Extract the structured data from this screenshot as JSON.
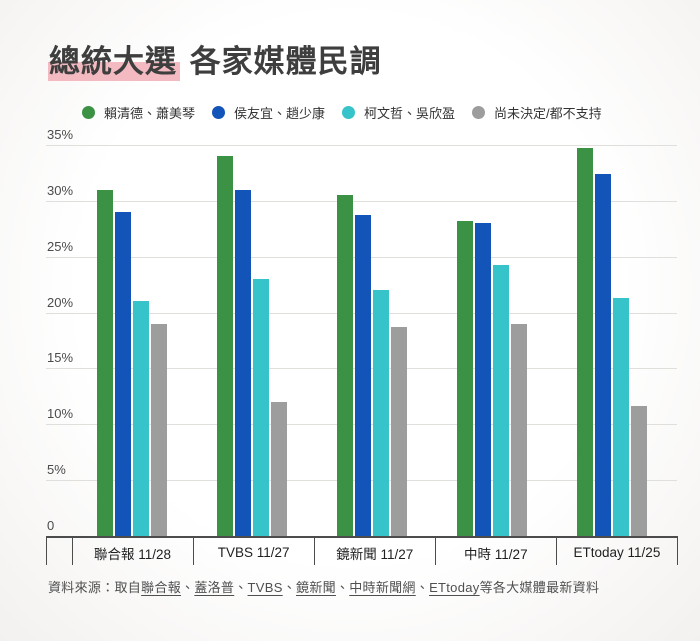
{
  "title": {
    "highlight": "總統大選",
    "rest": " 各家媒體民調"
  },
  "legend": [
    {
      "label": "賴清德、蕭美琴",
      "color": "#3b9144"
    },
    {
      "label": "侯友宜、趙少康",
      "color": "#1254b8"
    },
    {
      "label": "柯文哲、吳欣盈",
      "color": "#36c3c9"
    },
    {
      "label": "尚未決定/都不支持",
      "color": "#9d9d9d"
    }
  ],
  "chart_data": {
    "type": "bar",
    "title": "總統大選 各家媒體民調",
    "categories": [
      "聯合報 11/28",
      "TVBS 11/27",
      "鏡新聞 11/27",
      "中時 11/27",
      "ETtoday 11/25"
    ],
    "series": [
      {
        "name": "賴清德、蕭美琴",
        "color": "#3b9144",
        "values": [
          31.0,
          34.0,
          30.5,
          28.2,
          34.7
        ]
      },
      {
        "name": "侯友宜、趙少康",
        "color": "#1254b8",
        "values": [
          29.0,
          31.0,
          28.7,
          28.0,
          32.4
        ]
      },
      {
        "name": "柯文哲、吳欣盈",
        "color": "#36c3c9",
        "values": [
          21.0,
          23.0,
          22.0,
          24.3,
          21.3
        ]
      },
      {
        "name": "尚未決定/都不支持",
        "color": "#9d9d9d",
        "values": [
          19.0,
          12.0,
          18.7,
          19.0,
          11.6
        ]
      }
    ],
    "ylim": [
      0,
      35
    ],
    "ytick_labels": [
      "35%",
      "30%",
      "25%",
      "20%",
      "15%",
      "10%",
      "5%",
      "0"
    ],
    "grid": true,
    "legend_position": "top",
    "unit": "%"
  },
  "footer": {
    "prefix": "資料來源：取自",
    "links": [
      "聯合報",
      "蓋洛普",
      "TVBS",
      "鏡新聞",
      "中時新聞網",
      "ETtoday"
    ],
    "separator": "、",
    "suffix": "等各大媒體最新資料"
  },
  "colors": {
    "highlight_pink": "#f3bbc1",
    "gridline": "#e1dfdc",
    "axis": "#4c4c4c",
    "title_text": "#3e3e3e",
    "tick_text": "#4b4b4b"
  }
}
